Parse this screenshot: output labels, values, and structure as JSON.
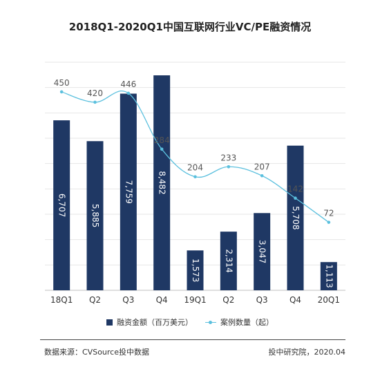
{
  "chart_data": {
    "type": "bar",
    "title": "2018Q1-2020Q1中国互联网行业VC/PE融资情况",
    "categories": [
      "18Q1",
      "Q2",
      "Q3",
      "Q4",
      "19Q1",
      "Q2",
      "Q3",
      "Q4",
      "20Q1"
    ],
    "series": [
      {
        "name": "融资金额（百万美元）",
        "type": "bar",
        "values": [
          6707,
          5885,
          7759,
          8482,
          1573,
          2314,
          3047,
          5708,
          1113
        ],
        "labels": [
          "6,707",
          "5,885",
          "7,759",
          "8,482",
          "1,573",
          "2,314",
          "3,047",
          "5,708",
          "1,113"
        ],
        "color": "#1f3864"
      },
      {
        "name": "案例数量（起）",
        "type": "line",
        "values": [
          450,
          420,
          446,
          284,
          204,
          233,
          207,
          142,
          72
        ],
        "color": "#5bc0de"
      }
    ],
    "bar_ylim": [
      0,
      9000
    ],
    "line_ylim": [
      -125,
      536
    ],
    "grid": true,
    "legend": "bottom"
  },
  "legend": {
    "bar_label": "融资金额（百万美元）",
    "line_label": "案例数量（起）"
  },
  "footer": {
    "source": "数据来源：CVSource投中数据",
    "credit": "投中研究院，2020.04"
  }
}
